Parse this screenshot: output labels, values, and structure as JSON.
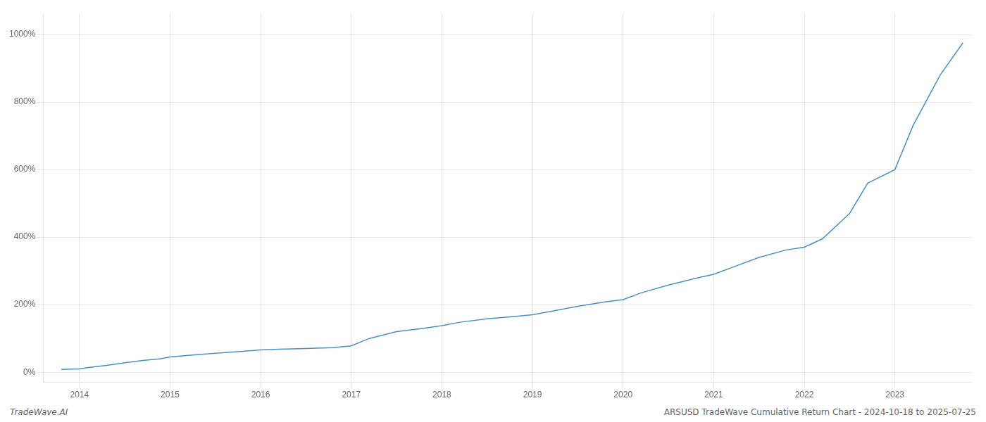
{
  "chart_data": {
    "type": "line",
    "title": "ARSUSD TradeWave Cumulative Return Chart - 2024-10-18 to 2025-07-25",
    "annotations": [
      "TradeWave.AI"
    ],
    "x": [
      2013.8,
      2014.0,
      2014.1,
      2014.3,
      2014.5,
      2014.7,
      2014.9,
      2015.0,
      2015.2,
      2015.5,
      2015.8,
      2016.0,
      2016.2,
      2016.5,
      2016.8,
      2017.0,
      2017.2,
      2017.5,
      2017.8,
      2018.0,
      2018.2,
      2018.5,
      2018.8,
      2019.0,
      2019.2,
      2019.5,
      2019.8,
      2020.0,
      2020.2,
      2020.5,
      2020.8,
      2021.0,
      2021.2,
      2021.5,
      2021.8,
      2022.0,
      2022.2,
      2022.5,
      2022.7,
      2023.0,
      2023.2,
      2023.5,
      2023.75
    ],
    "values": [
      8,
      10,
      14,
      20,
      28,
      35,
      40,
      45,
      50,
      56,
      62,
      66,
      68,
      70,
      73,
      78,
      100,
      120,
      130,
      138,
      148,
      158,
      165,
      170,
      180,
      195,
      208,
      215,
      235,
      258,
      278,
      290,
      310,
      340,
      362,
      370,
      395,
      470,
      560,
      600,
      730,
      880,
      975
    ],
    "color": "#4a90c4",
    "xlim": [
      2013.6,
      2023.85
    ],
    "xticks": [
      2014,
      2015,
      2016,
      2017,
      2018,
      2019,
      2020,
      2021,
      2022,
      2023
    ],
    "ylim": [
      -30,
      1060
    ],
    "yticks": [
      {
        "value": 0,
        "label": "0%"
      },
      {
        "value": 200,
        "label": "200%"
      },
      {
        "value": 400,
        "label": "400%"
      },
      {
        "value": 600,
        "label": "600%"
      },
      {
        "value": 800,
        "label": "800%"
      },
      {
        "value": 1000,
        "label": "1000%"
      }
    ],
    "grid": true
  }
}
